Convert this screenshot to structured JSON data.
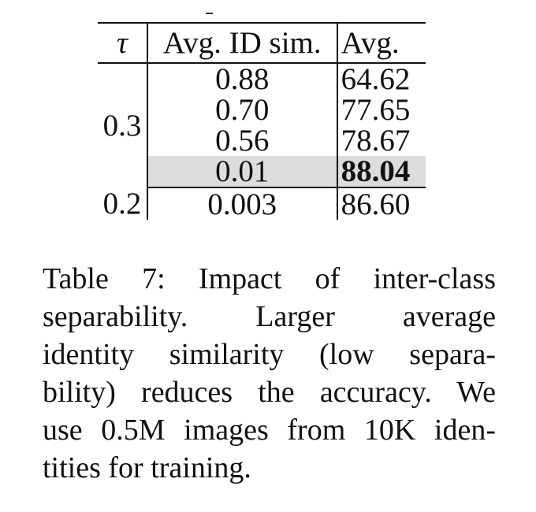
{
  "table": {
    "headers": {
      "tau": "τ",
      "avg_id_sim": "Avg. ID sim.",
      "avg": "Avg."
    },
    "groups": [
      {
        "tau": "0.3",
        "rows": [
          {
            "avg_id_sim": "0.88",
            "avg": "64.62",
            "highlight": false
          },
          {
            "avg_id_sim": "0.70",
            "avg": "77.65",
            "highlight": false
          },
          {
            "avg_id_sim": "0.56",
            "avg": "78.67",
            "highlight": false
          },
          {
            "avg_id_sim": "0.01",
            "avg": "88.04",
            "highlight": true,
            "bold": true
          }
        ]
      },
      {
        "tau": "0.2",
        "rows": [
          {
            "avg_id_sim": "0.003",
            "avg": "86.60",
            "highlight": false
          }
        ]
      }
    ],
    "highlight_color": "#dcdcdc"
  },
  "caption": {
    "lines": [
      "Table 7: Impact of inter-class",
      "separability.  Larger average",
      "identity similarity (low separa-",
      "bility) reduces the accuracy. We",
      "use 0.5M images from 10K iden-",
      "tities for training."
    ]
  }
}
